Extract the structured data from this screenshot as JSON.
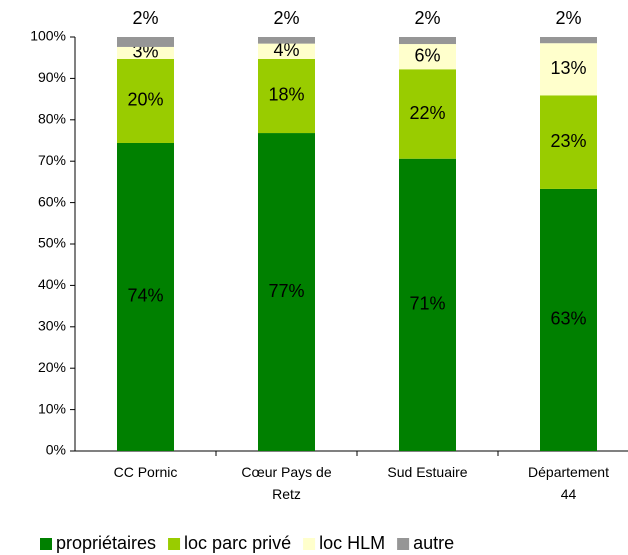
{
  "chart_data": {
    "type": "stacked_bar",
    "categories": [
      "CC Pornic",
      "Cœur Pays de Retz",
      "Sud Estuaire",
      "Département 44"
    ],
    "series": [
      {
        "name": "propriétaires",
        "color": "#008000",
        "values": [
          74.4,
          76.8,
          70.6,
          63.3
        ],
        "value_labels": [
          "74%",
          "77%",
          "71%",
          "63%"
        ]
      },
      {
        "name": "loc parc privé",
        "color": "#99cc00",
        "values": [
          20.3,
          17.9,
          21.6,
          22.6
        ],
        "value_labels": [
          "20%",
          "18%",
          "22%",
          "23%"
        ]
      },
      {
        "name": "loc HLM",
        "color": "#ffffcc",
        "values": [
          2.9,
          3.7,
          6.1,
          12.6
        ],
        "value_labels": [
          "3%",
          "4%",
          "6%",
          "13%"
        ]
      },
      {
        "name": "autre",
        "color": "#969696",
        "values": [
          2.4,
          1.6,
          1.7,
          1.5
        ],
        "value_labels": [
          "2%",
          "2%",
          "2%",
          "2%"
        ]
      }
    ],
    "ylim": [
      0,
      100
    ],
    "yticks": [
      {
        "value": 0,
        "label": "0%"
      },
      {
        "value": 10,
        "label": "10%"
      },
      {
        "value": 20,
        "label": "20%"
      },
      {
        "value": 30,
        "label": "30%"
      },
      {
        "value": 40,
        "label": "40%"
      },
      {
        "value": 50,
        "label": "50%"
      },
      {
        "value": 60,
        "label": "60%"
      },
      {
        "value": 70,
        "label": "70%"
      },
      {
        "value": 80,
        "label": "80%"
      },
      {
        "value": 90,
        "label": "90%"
      },
      {
        "value": 100,
        "label": "100%"
      }
    ],
    "legend": "bottom"
  }
}
